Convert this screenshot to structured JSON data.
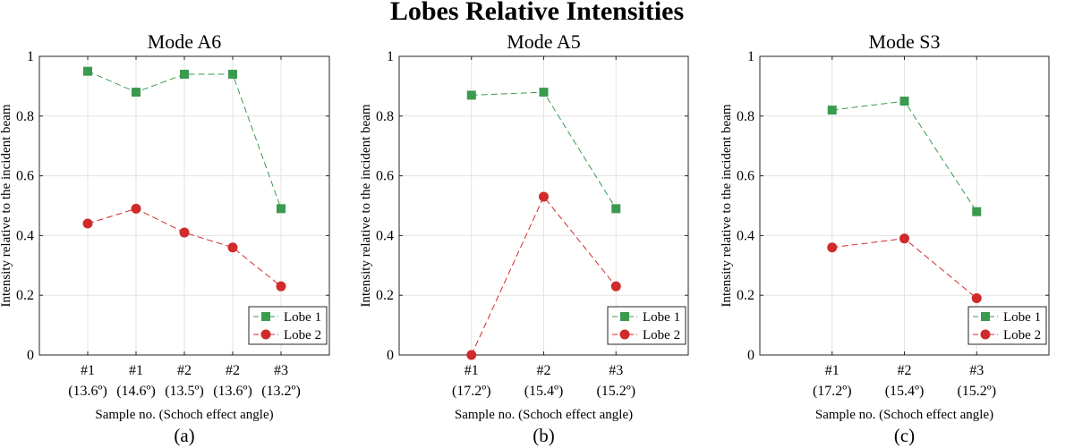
{
  "figure_title": "Lobes Relative Intensities",
  "chart_data": [
    {
      "type": "line",
      "title": "Mode A6",
      "panel_label": "(a)",
      "xlabel": "Sample no. (Schoch effect angle)",
      "ylabel": "Intensity relative to the incident beam",
      "categories": [
        [
          "#1",
          "(13.6º)"
        ],
        [
          "#1",
          "(14.6º)"
        ],
        [
          "#2",
          "(13.5º)"
        ],
        [
          "#2",
          "(13.6º)"
        ],
        [
          "#3",
          "(13.2º)"
        ]
      ],
      "ylim": [
        0,
        1
      ],
      "yticks": [
        "0",
        "0.2",
        "0.4",
        "0.6",
        "0.8",
        "1"
      ],
      "grid": true,
      "legend_position": "bottom-right",
      "series": [
        {
          "name": "Lobe 1",
          "values": [
            0.95,
            0.88,
            0.94,
            0.94,
            0.49
          ],
          "color": "#3a9a4e",
          "marker": "square"
        },
        {
          "name": "Lobe 2",
          "values": [
            0.44,
            0.49,
            0.41,
            0.36,
            0.23
          ],
          "color": "#d12a2a",
          "marker": "circle"
        }
      ]
    },
    {
      "type": "line",
      "title": "Mode A5",
      "panel_label": "(b)",
      "xlabel": "Sample no. (Schoch effect angle)",
      "ylabel": "Intensity relative to the incident beam",
      "categories": [
        [
          "#1",
          "(17.2º)"
        ],
        [
          "#2",
          "(15.4º)"
        ],
        [
          "#3",
          "(15.2º)"
        ]
      ],
      "ylim": [
        0,
        1
      ],
      "yticks": [
        "0",
        "0.2",
        "0.4",
        "0.6",
        "0.8",
        "1"
      ],
      "grid": true,
      "legend_position": "bottom-right",
      "series": [
        {
          "name": "Lobe 1",
          "values": [
            0.87,
            0.88,
            0.49
          ],
          "color": "#3a9a4e",
          "marker": "square"
        },
        {
          "name": "Lobe 2",
          "values": [
            0.0,
            0.53,
            0.23
          ],
          "color": "#d12a2a",
          "marker": "circle"
        }
      ]
    },
    {
      "type": "line",
      "title": "Mode S3",
      "panel_label": "(c)",
      "xlabel": "Sample no. (Schoch effect angle)",
      "ylabel": "Intensity relative to the incident beam",
      "categories": [
        [
          "#1",
          "(17.2º)"
        ],
        [
          "#2",
          "(15.4º)"
        ],
        [
          "#3",
          "(15.2º)"
        ]
      ],
      "ylim": [
        0,
        1
      ],
      "yticks": [
        "0",
        "0.2",
        "0.4",
        "0.6",
        "0.8",
        "1"
      ],
      "grid": true,
      "legend_position": "bottom-right",
      "series": [
        {
          "name": "Lobe 1",
          "values": [
            0.82,
            0.85,
            0.48
          ],
          "color": "#3a9a4e",
          "marker": "square"
        },
        {
          "name": "Lobe 2",
          "values": [
            0.36,
            0.39,
            0.19
          ],
          "color": "#d12a2a",
          "marker": "circle"
        }
      ]
    }
  ]
}
